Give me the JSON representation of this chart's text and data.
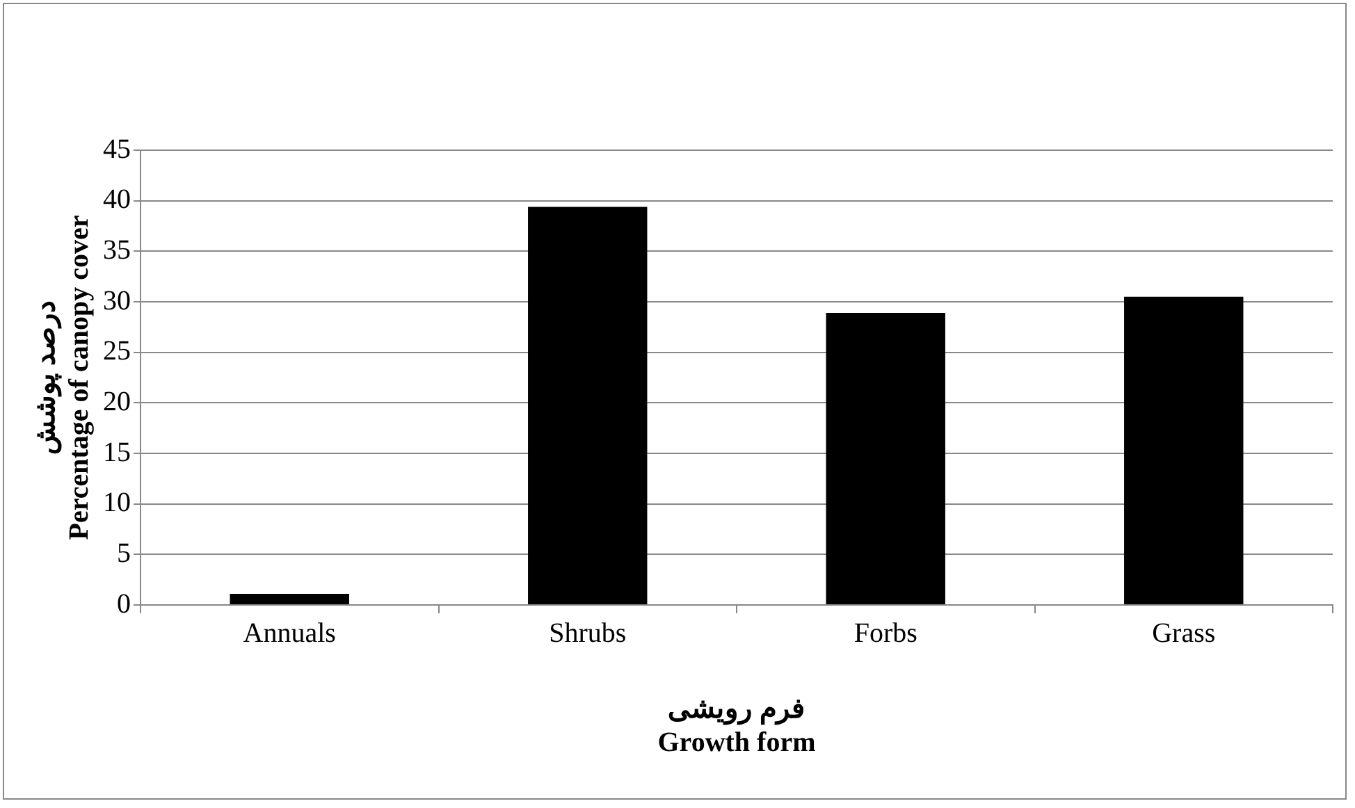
{
  "chart_data": {
    "type": "bar",
    "xlabel": "فرم رویشی\nGrowth form",
    "ylabel": "درصد پوشش\nPercentage of canopy cover",
    "categories": [
      "Annuals",
      "Shrubs",
      "Forbs",
      "Grass"
    ],
    "values": [
      1.1,
      39.4,
      28.9,
      30.5
    ],
    "color": "#000000",
    "ylim": [
      0,
      45
    ],
    "yticks": [
      0,
      5,
      10,
      15,
      20,
      25,
      30,
      35,
      40,
      45
    ],
    "grid": "y",
    "legend": false
  }
}
